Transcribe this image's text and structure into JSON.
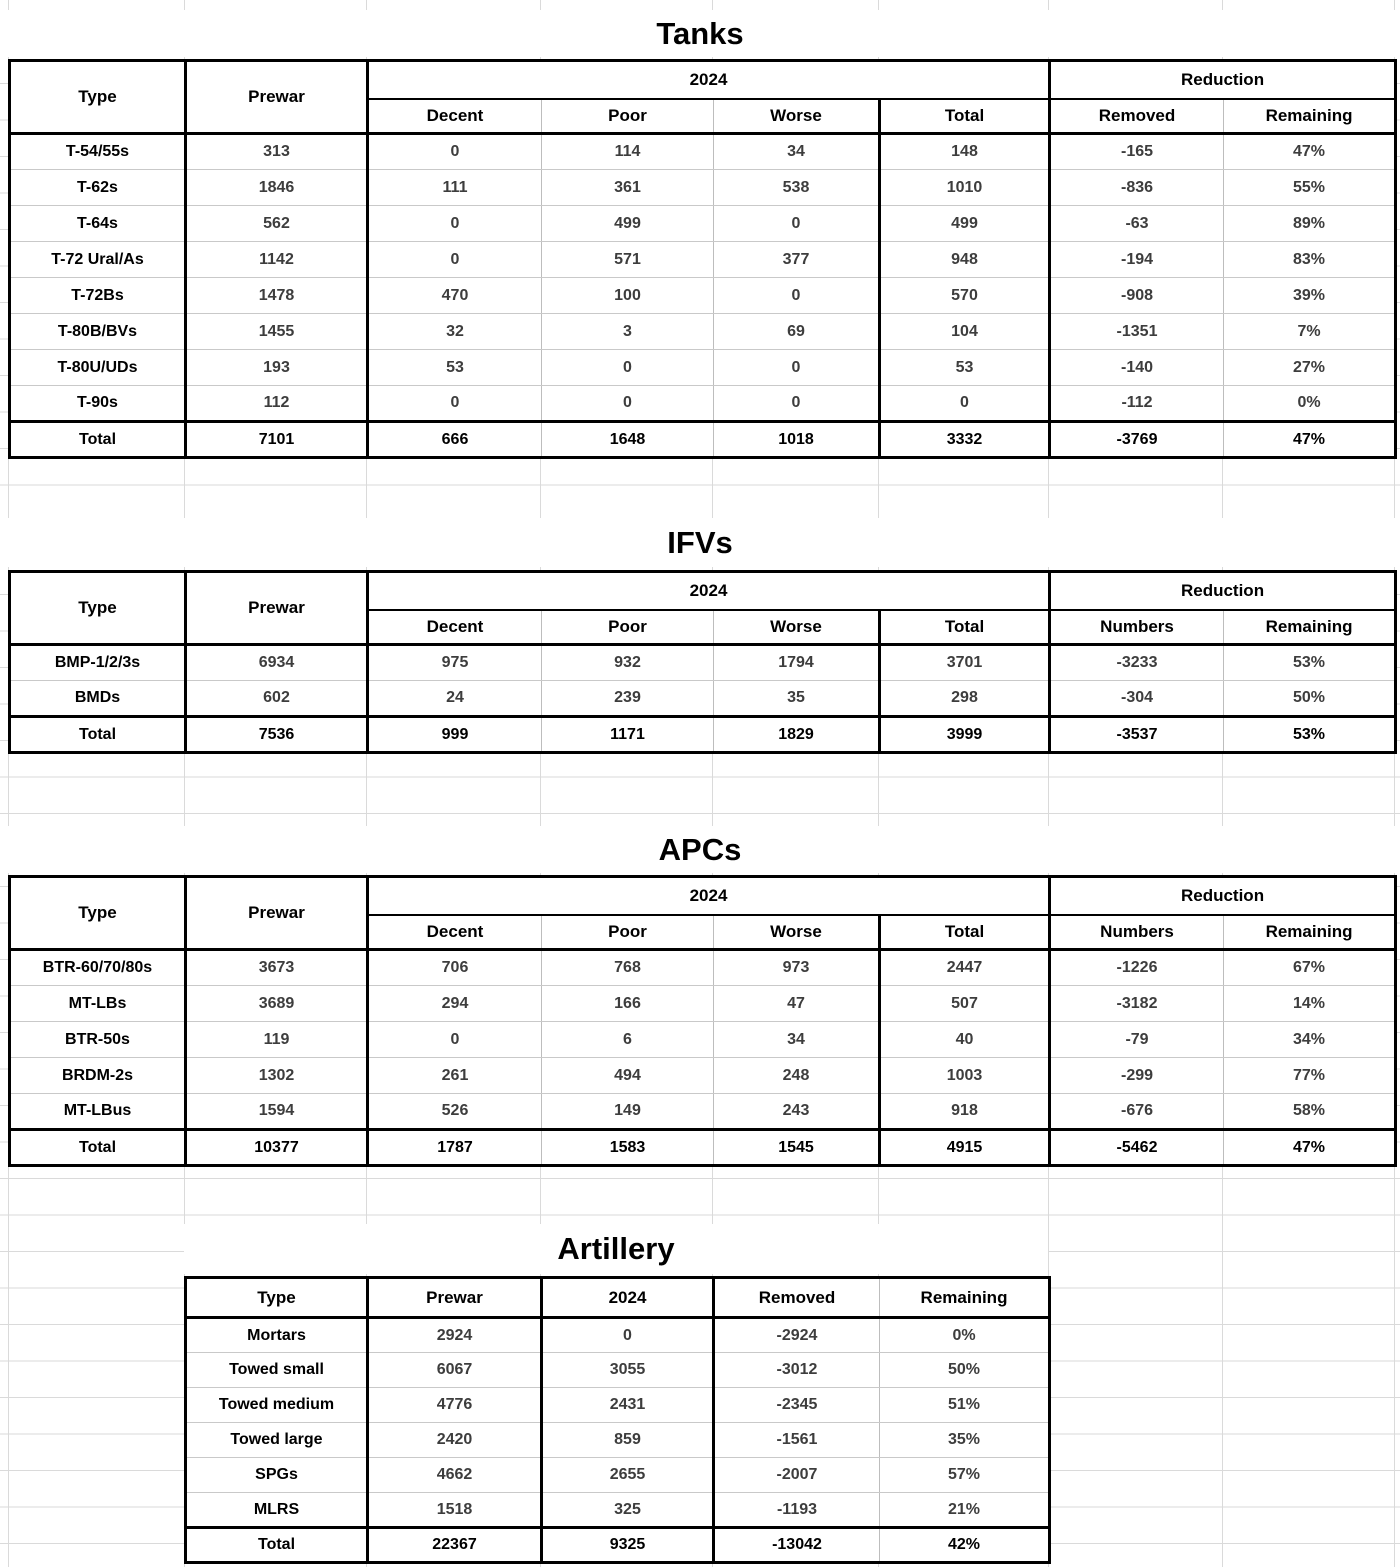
{
  "sections": [
    {
      "title": "Tanks",
      "header_rows": [
        [
          {
            "label": "Type",
            "rowspan": 2
          },
          {
            "label": "Prewar",
            "rowspan": 2
          },
          {
            "label": "2024",
            "colspan": 4
          },
          {
            "label": "Reduction",
            "colspan": 2
          }
        ],
        [
          {
            "label": "Decent"
          },
          {
            "label": "Poor"
          },
          {
            "label": "Worse"
          },
          {
            "label": "Total"
          },
          {
            "label": "Removed"
          },
          {
            "label": "Remaining"
          }
        ]
      ],
      "rows": [
        [
          "T-54/55s",
          313,
          0,
          114,
          34,
          148,
          -165,
          "47%"
        ],
        [
          "T-62s",
          1846,
          111,
          361,
          538,
          1010,
          -836,
          "55%"
        ],
        [
          "T-64s",
          562,
          0,
          499,
          0,
          499,
          -63,
          "89%"
        ],
        [
          "T-72 Ural/As",
          1142,
          0,
          571,
          377,
          948,
          -194,
          "83%"
        ],
        [
          "T-72Bs",
          1478,
          470,
          100,
          0,
          570,
          -908,
          "39%"
        ],
        [
          "T-80B/BVs",
          1455,
          32,
          3,
          69,
          104,
          -1351,
          "7%"
        ],
        [
          "T-80U/UDs",
          193,
          53,
          0,
          0,
          53,
          -140,
          "27%"
        ],
        [
          "T-90s",
          112,
          0,
          0,
          0,
          0,
          -112,
          "0%"
        ]
      ],
      "total": [
        "Total",
        7101,
        666,
        1648,
        1018,
        3332,
        -3769,
        "47%"
      ]
    },
    {
      "title": "IFVs",
      "header_rows": [
        [
          {
            "label": "Type",
            "rowspan": 2
          },
          {
            "label": "Prewar",
            "rowspan": 2
          },
          {
            "label": "2024",
            "colspan": 4
          },
          {
            "label": "Reduction",
            "colspan": 2
          }
        ],
        [
          {
            "label": "Decent"
          },
          {
            "label": "Poor"
          },
          {
            "label": "Worse"
          },
          {
            "label": "Total"
          },
          {
            "label": "Numbers"
          },
          {
            "label": "Remaining"
          }
        ]
      ],
      "rows": [
        [
          "BMP-1/2/3s",
          6934,
          975,
          932,
          1794,
          3701,
          -3233,
          "53%"
        ],
        [
          "BMDs",
          602,
          24,
          239,
          35,
          298,
          -304,
          "50%"
        ]
      ],
      "total": [
        "Total",
        7536,
        999,
        1171,
        1829,
        3999,
        -3537,
        "53%"
      ]
    },
    {
      "title": "APCs",
      "header_rows": [
        [
          {
            "label": "Type",
            "rowspan": 2
          },
          {
            "label": "Prewar",
            "rowspan": 2
          },
          {
            "label": "2024",
            "colspan": 4
          },
          {
            "label": "Reduction",
            "colspan": 2
          }
        ],
        [
          {
            "label": "Decent"
          },
          {
            "label": "Poor"
          },
          {
            "label": "Worse"
          },
          {
            "label": "Total"
          },
          {
            "label": "Numbers"
          },
          {
            "label": "Remaining"
          }
        ]
      ],
      "rows": [
        [
          "BTR-60/70/80s",
          3673,
          706,
          768,
          973,
          2447,
          -1226,
          "67%"
        ],
        [
          "MT-LBs",
          3689,
          294,
          166,
          47,
          507,
          -3182,
          "14%"
        ],
        [
          "BTR-50s",
          119,
          0,
          6,
          34,
          40,
          -79,
          "34%"
        ],
        [
          "BRDM-2s",
          1302,
          261,
          494,
          248,
          1003,
          -299,
          "77%"
        ],
        [
          "MT-LBus",
          1594,
          526,
          149,
          243,
          918,
          -676,
          "58%"
        ]
      ],
      "total": [
        "Total",
        10377,
        1787,
        1583,
        1545,
        4915,
        -5462,
        "47%"
      ]
    },
    {
      "title": "Artillery",
      "header_rows": [
        [
          {
            "label": "Type"
          },
          {
            "label": "Prewar"
          },
          {
            "label": "2024"
          },
          {
            "label": "Removed"
          },
          {
            "label": "Remaining"
          }
        ]
      ],
      "rows": [
        [
          "Mortars",
          2924,
          0,
          -2924,
          "0%"
        ],
        [
          "Towed small",
          6067,
          3055,
          -3012,
          "50%"
        ],
        [
          "Towed medium",
          4776,
          2431,
          -2345,
          "51%"
        ],
        [
          "Towed large",
          2420,
          859,
          -1561,
          "35%"
        ],
        [
          "SPGs",
          4662,
          2655,
          -2007,
          "57%"
        ],
        [
          "MLRS",
          1518,
          325,
          -1193,
          "21%"
        ]
      ],
      "total": [
        "Total",
        22367,
        9325,
        -13042,
        "42%"
      ]
    }
  ]
}
